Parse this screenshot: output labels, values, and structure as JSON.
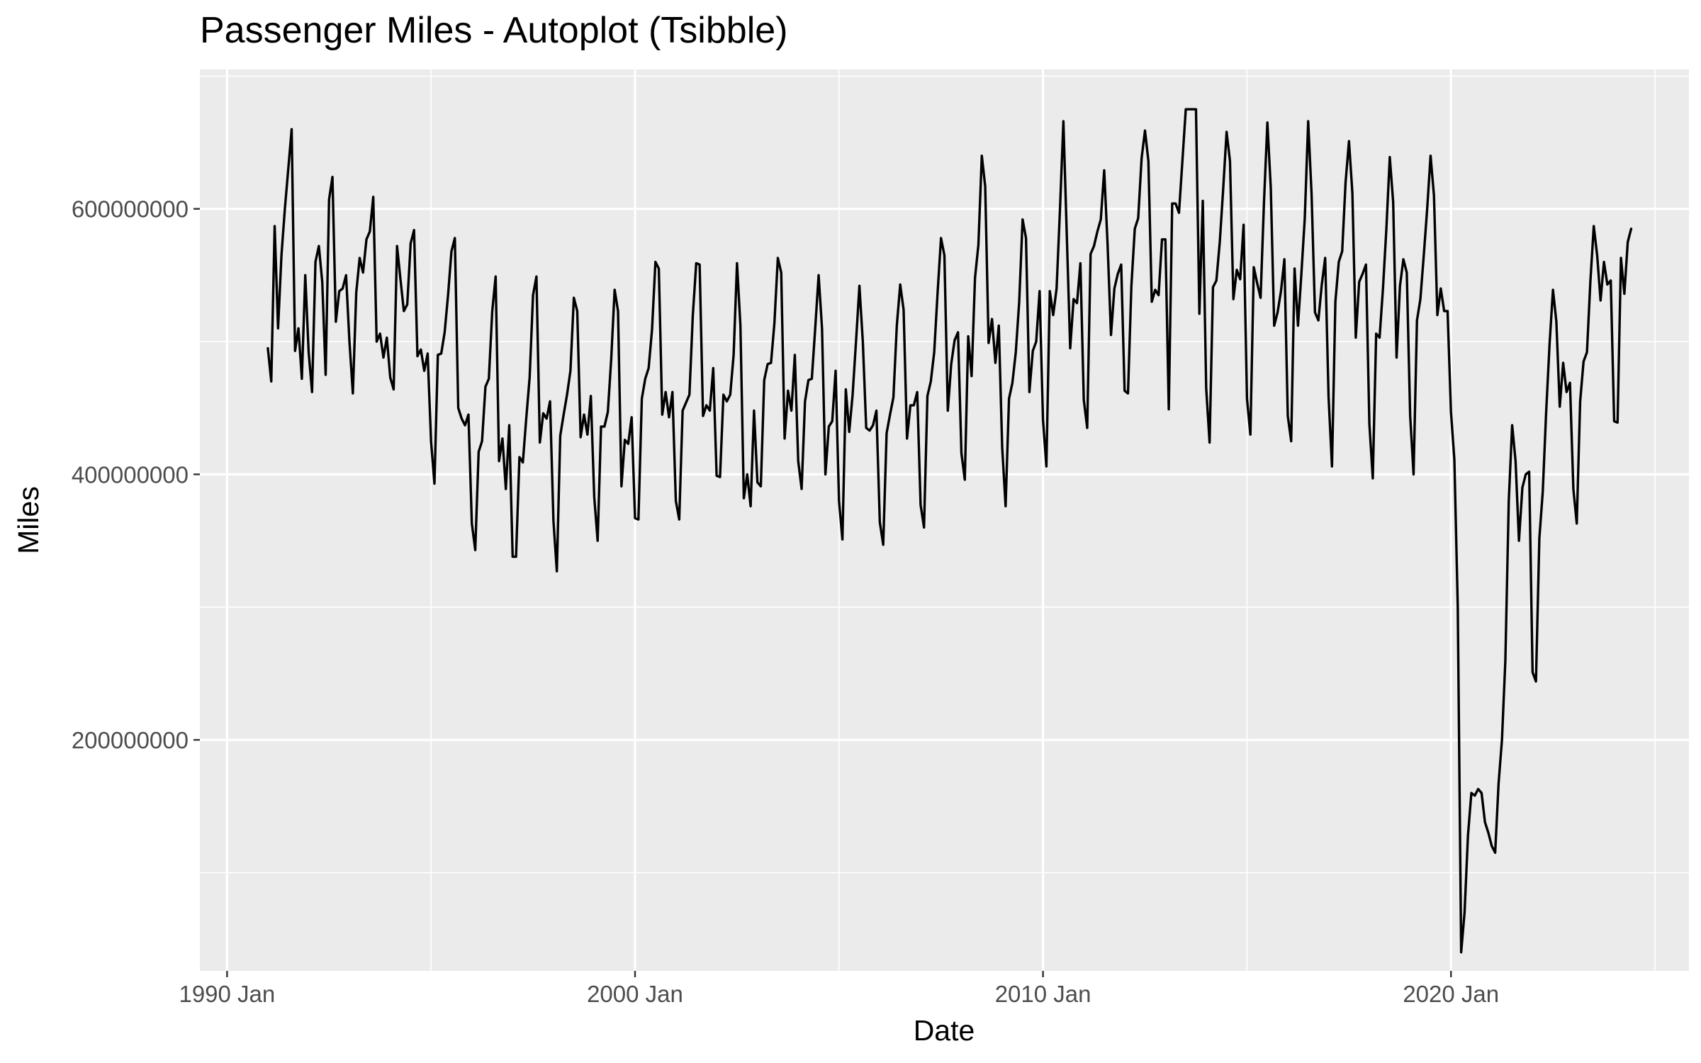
{
  "chart_data": {
    "type": "line",
    "title": "Passenger Miles - Autoplot (Tsibble)",
    "xlabel": "Date",
    "ylabel": "Miles",
    "x_tick_labels": [
      "1990 Jan",
      "2000 Jan",
      "2010 Jan",
      "2020 Jan"
    ],
    "y_tick_labels": [
      "200000000",
      "400000000",
      "600000000"
    ],
    "y_ticks": [
      200000000,
      400000000,
      600000000
    ],
    "xlim": [
      "1989-05",
      "2025-11"
    ],
    "ylim": [
      26000000,
      705000000
    ],
    "grid": true,
    "legend": "none",
    "colors": {
      "panel": "#ebebeb",
      "grid": "#ffffff",
      "line": "#000000",
      "tick_text": "#4d4d4d"
    },
    "series": [
      {
        "start": "1991-01",
        "frequency": "monthly",
        "values": [
          495000000,
          470000000,
          587000000,
          510000000,
          565000000,
          600000000,
          630000000,
          660000000,
          493000000,
          510000000,
          472000000,
          550000000,
          492000000,
          462000000,
          560000000,
          572000000,
          545000000,
          475000000,
          607000000,
          624000000,
          515000000,
          538000000,
          540000000,
          550000000,
          500000000,
          461000000,
          537000000,
          563000000,
          552000000,
          577000000,
          583000000,
          609000000,
          500000000,
          506000000,
          488000000,
          503000000,
          473000000,
          464000000,
          572000000,
          547000000,
          523000000,
          528000000,
          574000000,
          584000000,
          489000000,
          494000000,
          478000000,
          491000000,
          425000000,
          393000000,
          490000000,
          491000000,
          507000000,
          535000000,
          568000000,
          578000000,
          450000000,
          442000000,
          437000000,
          445000000,
          363000000,
          343000000,
          417000000,
          425000000,
          466000000,
          472000000,
          523000000,
          549000000,
          410000000,
          427000000,
          389000000,
          437000000,
          338000000,
          338000000,
          413000000,
          409000000,
          442000000,
          473000000,
          535000000,
          549000000,
          424000000,
          446000000,
          442000000,
          455000000,
          365000000,
          327000000,
          429000000,
          445000000,
          460000000,
          478000000,
          533000000,
          523000000,
          428000000,
          445000000,
          430000000,
          459000000,
          383000000,
          350000000,
          436000000,
          436000000,
          447000000,
          487000000,
          539000000,
          523000000,
          391000000,
          426000000,
          423000000,
          443000000,
          367000000,
          366000000,
          457000000,
          472000000,
          480000000,
          509000000,
          560000000,
          555000000,
          445000000,
          462000000,
          443000000,
          462000000,
          380000000,
          366000000,
          448000000,
          454000000,
          460000000,
          520000000,
          559000000,
          558000000,
          444000000,
          452000000,
          448000000,
          480000000,
          399000000,
          398000000,
          460000000,
          455000000,
          460000000,
          490000000,
          559000000,
          512000000,
          382000000,
          400000000,
          376000000,
          448000000,
          394000000,
          391000000,
          471000000,
          483000000,
          484000000,
          514000000,
          563000000,
          552000000,
          427000000,
          463000000,
          448000000,
          490000000,
          410000000,
          389000000,
          455000000,
          471000000,
          472000000,
          510000000,
          550000000,
          510000000,
          400000000,
          436000000,
          440000000,
          478000000,
          380000000,
          351000000,
          464000000,
          432000000,
          460000000,
          500000000,
          542000000,
          500000000,
          435000000,
          433000000,
          437000000,
          448000000,
          364000000,
          347000000,
          431000000,
          445000000,
          458000000,
          512000000,
          543000000,
          524000000,
          427000000,
          452000000,
          452000000,
          462000000,
          377000000,
          360000000,
          459000000,
          470000000,
          492000000,
          537000000,
          578000000,
          565000000,
          448000000,
          483000000,
          501000000,
          507000000,
          416000000,
          396000000,
          504000000,
          474000000,
          548000000,
          573000000,
          640000000,
          617000000,
          499000000,
          517000000,
          484000000,
          512000000,
          420000000,
          376000000,
          457000000,
          469000000,
          492000000,
          530000000,
          592000000,
          578000000,
          462000000,
          493000000,
          500000000,
          538000000,
          441000000,
          406000000,
          538000000,
          520000000,
          540000000,
          600000000,
          666000000,
          580000000,
          495000000,
          532000000,
          529000000,
          559000000,
          456000000,
          435000000,
          566000000,
          572000000,
          583000000,
          592000000,
          629000000,
          573000000,
          505000000,
          540000000,
          551000000,
          558000000,
          463000000,
          461000000,
          542000000,
          585000000,
          593000000,
          638000000,
          659000000,
          636000000,
          530000000,
          539000000,
          535000000,
          577000000,
          577000000,
          449000000,
          604000000,
          604000000,
          597000000,
          636000000,
          675000000,
          675000000,
          675000000,
          675000000,
          521000000,
          606000000,
          465000000,
          424000000,
          541000000,
          546000000,
          575000000,
          615000000,
          658000000,
          636000000,
          532000000,
          554000000,
          547000000,
          588000000,
          457000000,
          430000000,
          556000000,
          544000000,
          533000000,
          605000000,
          665000000,
          616000000,
          512000000,
          522000000,
          538000000,
          562000000,
          444000000,
          425000000,
          555000000,
          512000000,
          551000000,
          593000000,
          666000000,
          611000000,
          522000000,
          516000000,
          543000000,
          563000000,
          458000000,
          406000000,
          530000000,
          560000000,
          568000000,
          620000000,
          651000000,
          612000000,
          503000000,
          545000000,
          551000000,
          558000000,
          438000000,
          397000000,
          506000000,
          503000000,
          540000000,
          585000000,
          639000000,
          605000000,
          488000000,
          542000000,
          562000000,
          552000000,
          444000000,
          400000000,
          516000000,
          532000000,
          565000000,
          600000000,
          640000000,
          610000000,
          520000000,
          540000000,
          523000000,
          523000000,
          447000000,
          411000000,
          300000000,
          40000000,
          70000000,
          128000000,
          160000000,
          158000000,
          163000000,
          160000000,
          138000000,
          130000000,
          120000000,
          115000000,
          167000000,
          200000000,
          260000000,
          380000000,
          437000000,
          410000000,
          350000000,
          390000000,
          400000000,
          402000000,
          251000000,
          244000000,
          352000000,
          387000000,
          447000000,
          498000000,
          539000000,
          515000000,
          451000000,
          484000000,
          462000000,
          469000000,
          389000000,
          363000000,
          455000000,
          485000000,
          492000000,
          545000000,
          587000000,
          565000000,
          531000000,
          560000000,
          543000000,
          546000000,
          440000000,
          439000000,
          563000000,
          536000000,
          575000000,
          585000000
        ]
      }
    ]
  }
}
